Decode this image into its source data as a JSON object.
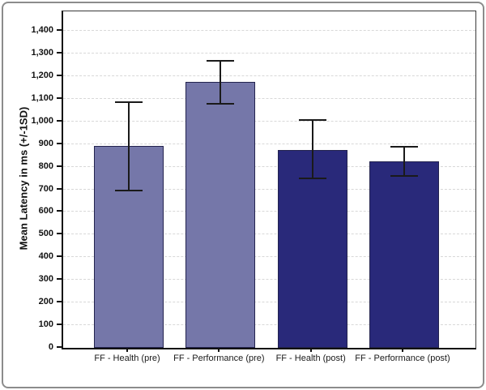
{
  "chart_data": {
    "type": "bar",
    "title": "",
    "xlabel": "",
    "ylabel": "Mean Latency in ms (+/-1SD)",
    "categories": [
      "FF - Health (pre)",
      "FF - Performance (pre)",
      "FF - Health (post)",
      "FF - Performance (post)"
    ],
    "series": [
      {
        "name": "Mean Latency in ms",
        "values": [
          890,
          1175,
          875,
          825
        ],
        "error_upper": [
          1090,
          1270,
          1010,
          890
        ],
        "error_lower": [
          690,
          1075,
          745,
          755
        ]
      }
    ],
    "bar_colors": [
      "#7577a9",
      "#7577a9",
      "#29297a",
      "#29297a"
    ],
    "ylim": [
      0,
      1400
    ],
    "ytick_step": 100,
    "ytick_labels": [
      "0",
      "100",
      "200",
      "300",
      "400",
      "500",
      "600",
      "700",
      "800",
      "900",
      "1,000",
      "1,100",
      "1,200",
      "1,300",
      "1,400"
    ],
    "grid": {
      "horizontal": true,
      "style": "dashed",
      "color": "#d8d8d8"
    },
    "legend": "none"
  },
  "colors": {
    "bar_pre": "#7577a9",
    "bar_post": "#29297a",
    "bar_border": "#23234e",
    "error_bar": "#1a1a1a",
    "axis": "#111111",
    "gridline": "#d8d8d8",
    "outer_border": "#8c8c8c",
    "background": "#ffffff"
  }
}
